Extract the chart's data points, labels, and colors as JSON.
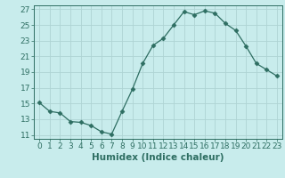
{
  "x": [
    0,
    1,
    2,
    3,
    4,
    5,
    6,
    7,
    8,
    9,
    10,
    11,
    12,
    13,
    14,
    15,
    16,
    17,
    18,
    19,
    20,
    21,
    22,
    23
  ],
  "y": [
    15.1,
    14.0,
    13.8,
    12.7,
    12.6,
    12.2,
    11.4,
    11.1,
    14.0,
    16.8,
    20.1,
    22.4,
    23.3,
    25.0,
    26.7,
    26.3,
    26.8,
    26.5,
    25.2,
    24.3,
    22.3,
    20.1,
    19.3,
    18.5
  ],
  "line_color": "#2e6e62",
  "marker": "D",
  "marker_size": 2.5,
  "bg_color": "#c8ecec",
  "grid_color": "#aed4d4",
  "xlabel": "Humidex (Indice chaleur)",
  "xlim": [
    -0.5,
    23.5
  ],
  "ylim": [
    10.5,
    27.5
  ],
  "yticks": [
    11,
    13,
    15,
    17,
    19,
    21,
    23,
    25,
    27
  ],
  "xticks": [
    0,
    1,
    2,
    3,
    4,
    5,
    6,
    7,
    8,
    9,
    10,
    11,
    12,
    13,
    14,
    15,
    16,
    17,
    18,
    19,
    20,
    21,
    22,
    23
  ],
  "xlabel_fontsize": 7.5,
  "tick_fontsize": 6.5
}
